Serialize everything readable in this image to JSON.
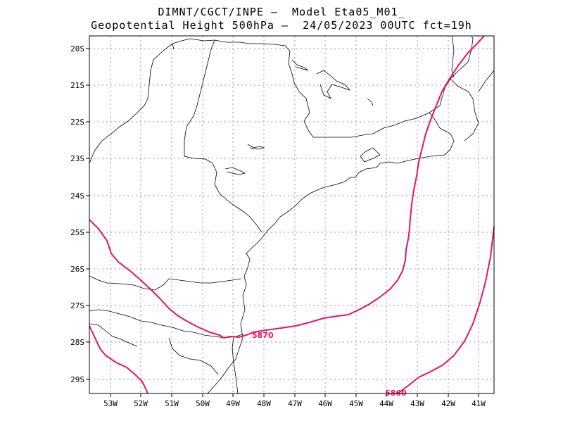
{
  "header": {
    "line1": "DIMNT/CGCT/INPE –  Model Eta05_M01_",
    "line2": "Geopotential Height 500hPa –  24/05/2023 00UTC fct=19h"
  },
  "axes": {
    "lat_labels": [
      "20S",
      "21S",
      "22S",
      "23S",
      "24S",
      "25S",
      "26S",
      "27S",
      "28S",
      "29S"
    ],
    "lon_labels": [
      "53W",
      "52W",
      "51W",
      "50W",
      "49W",
      "48W",
      "47W",
      "46W",
      "45W",
      "44W",
      "43W",
      "42W",
      "41W"
    ]
  },
  "contours": {
    "label_5870": "5870",
    "label_5860": "5860",
    "color": "#e8155c"
  }
}
